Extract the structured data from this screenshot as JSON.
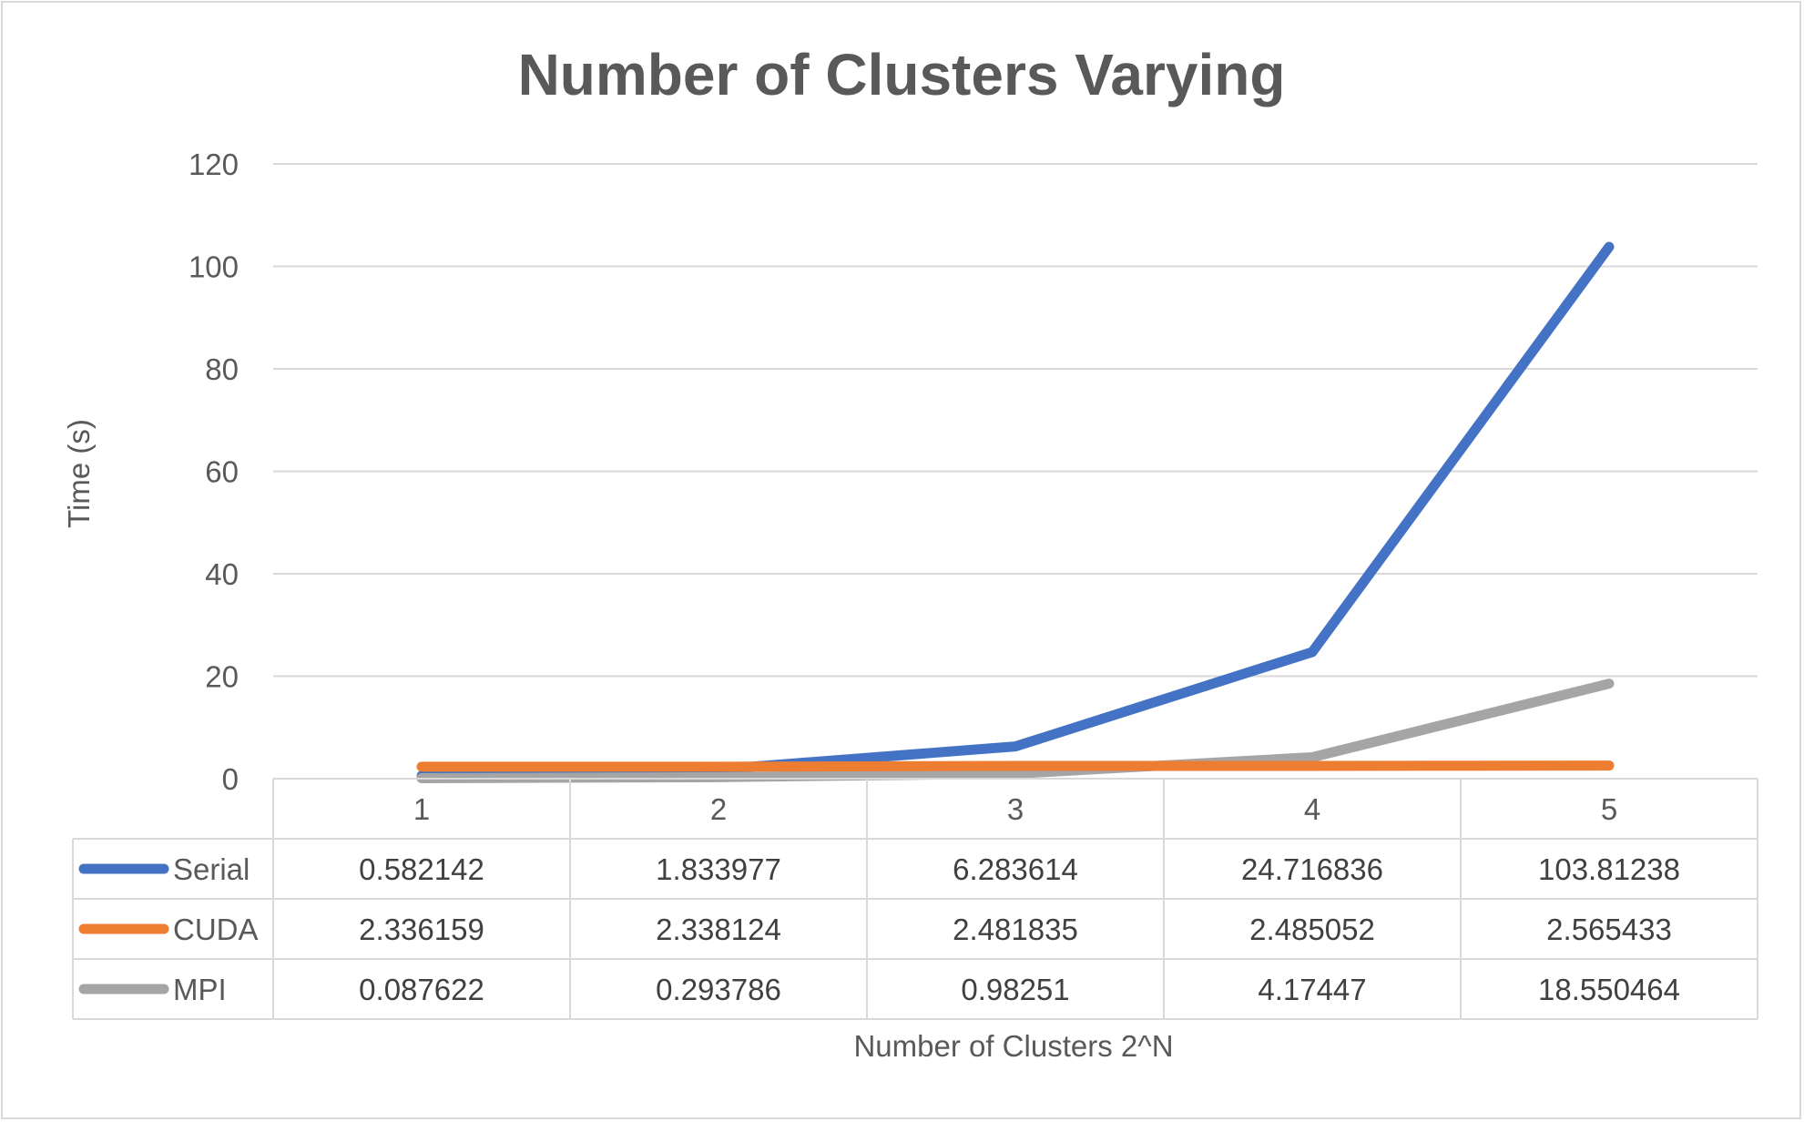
{
  "chart_data": {
    "type": "line",
    "title": "Number of Clusters Varying",
    "xlabel": "Number of Clusters 2^N",
    "ylabel": "Time (s)",
    "categories": [
      "1",
      "2",
      "3",
      "4",
      "5"
    ],
    "yticks": [
      "0",
      "20",
      "40",
      "60",
      "80",
      "100",
      "120"
    ],
    "ylim": [
      0,
      120
    ],
    "grid": true,
    "legend": "data-table",
    "series": [
      {
        "name": "Serial",
        "color": "#4472c4",
        "values": [
          0.582142,
          1.833977,
          6.283614,
          24.716836,
          103.81238
        ],
        "labels": [
          "0.582142",
          "1.833977",
          "6.283614",
          "24.716836",
          "103.81238"
        ]
      },
      {
        "name": "CUDA",
        "color": "#ed7d31",
        "values": [
          2.336159,
          2.338124,
          2.481835,
          2.485052,
          2.565433
        ],
        "labels": [
          "2.336159",
          "2.338124",
          "2.481835",
          "2.485052",
          "2.565433"
        ]
      },
      {
        "name": "MPI",
        "color": "#a5a5a5",
        "values": [
          0.087622,
          0.293786,
          0.98251,
          4.17447,
          18.550464
        ],
        "labels": [
          "0.087622",
          "0.293786",
          "0.98251",
          "4.17447",
          "18.550464"
        ]
      }
    ]
  }
}
